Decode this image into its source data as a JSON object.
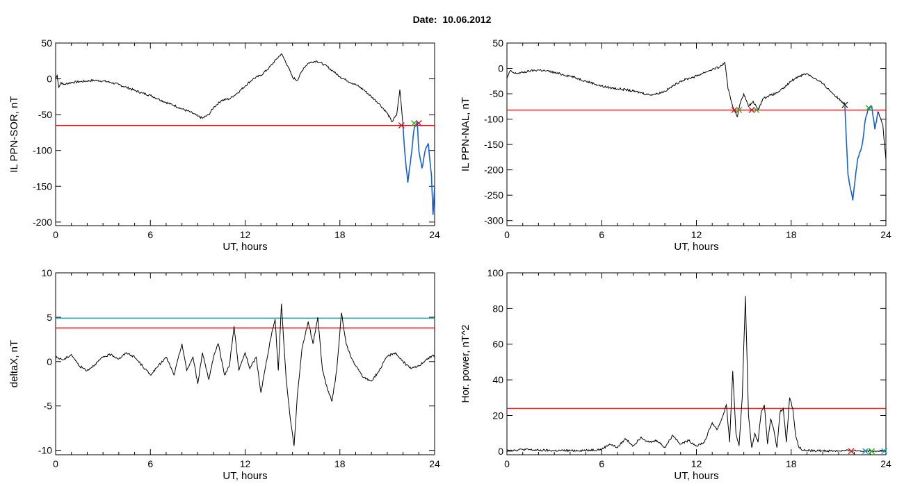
{
  "figure": {
    "title_label": "Date:",
    "title_date": "10.06.2012"
  },
  "colors": {
    "trace": "#000000",
    "threshold_red": "#e00000",
    "threshold_teal": "#008b8b",
    "highlight_blue": "#1560d8",
    "marker_red": "#d01010",
    "marker_green": "#20b020",
    "marker_dark": "#202020",
    "marker_cyan": "#20a0c0"
  },
  "chart_data": [
    {
      "id": "il-sor",
      "type": "line",
      "xlabel": "UT, hours",
      "ylabel": "IL PPN-SOR, nT",
      "xlim": [
        0,
        24
      ],
      "ylim": [
        -205,
        50
      ],
      "xticks": [
        0,
        6,
        12,
        18,
        24
      ],
      "yticks": [
        50,
        0,
        -50,
        -100,
        -150,
        -200
      ],
      "threshold_lines": [
        {
          "value": -65,
          "color": "red"
        }
      ],
      "series": [
        {
          "x": [
            0,
            0.1,
            0.2,
            0.35,
            0.5,
            1,
            1.5,
            2,
            2.5,
            3,
            3.5,
            4,
            4.5,
            5,
            5.5,
            6,
            6.5,
            7,
            7.5,
            8,
            8.5,
            9,
            9.3,
            9.7,
            10,
            10.5,
            11,
            11.5,
            12,
            12.5,
            13,
            13.5,
            14,
            14.3,
            14.7,
            15,
            15.3,
            15.7,
            16,
            16.5,
            17,
            17.5,
            18,
            18.5,
            19,
            19.5,
            20,
            20.5,
            21,
            21.3,
            21.6,
            21.8,
            22
          ],
          "y": [
            0,
            5,
            -12,
            -5,
            -8,
            -5,
            -4,
            -3,
            -2,
            -3,
            -5,
            -8,
            -12,
            -16,
            -20,
            -23,
            -28,
            -33,
            -37,
            -42,
            -46,
            -52,
            -55,
            -50,
            -40,
            -30,
            -28,
            -20,
            -10,
            0,
            5,
            15,
            28,
            35,
            18,
            2,
            -2,
            15,
            22,
            25,
            20,
            12,
            3,
            -3,
            -8,
            -15,
            -25,
            -35,
            -48,
            -60,
            -50,
            -15,
            -65
          ]
        },
        {
          "highlight": true,
          "x": [
            22,
            22.1,
            22.3,
            22.5,
            22.7,
            22.9,
            23,
            23.2,
            23.4,
            23.6,
            23.8,
            23.9,
            24
          ],
          "y": [
            -65,
            -100,
            -145,
            -110,
            -70,
            -60,
            -100,
            -125,
            -100,
            -90,
            -135,
            -190,
            -150
          ]
        }
      ],
      "markers": [
        {
          "x": 21.9,
          "y": -65,
          "color": "red"
        },
        {
          "x": 22.7,
          "y": -62,
          "color": "green"
        },
        {
          "x": 23.0,
          "y": -62,
          "color": "red"
        }
      ]
    },
    {
      "id": "il-nal",
      "type": "line",
      "xlabel": "UT, hours",
      "ylabel": "IL PPN-NAL, nT",
      "xlim": [
        0,
        24
      ],
      "ylim": [
        -310,
        50
      ],
      "xticks": [
        0,
        6,
        12,
        18,
        24
      ],
      "yticks": [
        50,
        0,
        -50,
        -100,
        -150,
        -200,
        -250,
        -300
      ],
      "threshold_lines": [
        {
          "value": -82,
          "color": "red"
        }
      ],
      "series": [
        {
          "x": [
            0,
            0.2,
            0.5,
            1,
            1.5,
            2,
            2.5,
            3,
            3.5,
            4,
            4.5,
            5,
            5.5,
            6,
            6.5,
            7,
            7.5,
            8,
            8.5,
            9,
            9.5,
            10,
            10.5,
            11,
            11.5,
            12,
            12.5,
            13,
            13.5,
            13.8,
            14,
            14.3,
            14.6,
            14.8,
            15,
            15.3,
            15.6,
            15.9,
            16.2,
            16.5,
            17,
            17.5,
            18,
            18.5,
            19,
            19.5,
            20,
            20.5,
            21,
            21.4
          ],
          "y": [
            -20,
            -5,
            -10,
            -8,
            -5,
            -3,
            -5,
            -8,
            -12,
            -15,
            -20,
            -25,
            -30,
            -35,
            -38,
            -40,
            -42,
            -45,
            -48,
            -52,
            -50,
            -45,
            -35,
            -25,
            -20,
            -15,
            -8,
            -2,
            3,
            12,
            -40,
            -75,
            -95,
            -65,
            -50,
            -75,
            -65,
            -82,
            -60,
            -55,
            -50,
            -40,
            -25,
            -15,
            -10,
            -20,
            -30,
            -45,
            -60,
            -70
          ]
        },
        {
          "highlight": true,
          "x": [
            21.4,
            21.6,
            21.9,
            22.2,
            22.5,
            22.7,
            22.9,
            23.1,
            23.3,
            23.5
          ],
          "y": [
            -75,
            -210,
            -260,
            -180,
            -150,
            -100,
            -80,
            -75,
            -120,
            -85
          ]
        },
        {
          "x": [
            23.5,
            23.8,
            24
          ],
          "y": [
            -85,
            -110,
            -180
          ]
        }
      ],
      "markers": [
        {
          "x": 14.4,
          "y": -82,
          "color": "red"
        },
        {
          "x": 14.7,
          "y": -82,
          "color": "green"
        },
        {
          "x": 15.5,
          "y": -82,
          "color": "red"
        },
        {
          "x": 15.8,
          "y": -82,
          "color": "green"
        },
        {
          "x": 21.4,
          "y": -72,
          "color": "dark"
        },
        {
          "x": 22.9,
          "y": -78,
          "color": "green"
        }
      ]
    },
    {
      "id": "deltax",
      "type": "line",
      "xlabel": "UT, hours",
      "ylabel": "deltaX, nT",
      "xlim": [
        0,
        24
      ],
      "ylim": [
        -10.5,
        10
      ],
      "xticks": [
        0,
        6,
        12,
        18,
        24
      ],
      "yticks": [
        10,
        5,
        0,
        -5,
        -10
      ],
      "threshold_lines": [
        {
          "value": 4.9,
          "color": "teal"
        },
        {
          "value": 3.8,
          "color": "red"
        }
      ],
      "series": [
        {
          "x": [
            0,
            0.5,
            1,
            1.5,
            2,
            2.5,
            3,
            3.5,
            4,
            4.5,
            5,
            5.5,
            6,
            6.5,
            7,
            7.5,
            8,
            8.3,
            8.7,
            9,
            9.3,
            9.7,
            10,
            10.3,
            10.7,
            11,
            11.3,
            11.6,
            12,
            12.3,
            12.7,
            13,
            13.3,
            13.6,
            13.9,
            14.1,
            14.3,
            14.6,
            14.9,
            15.1,
            15.3,
            15.6,
            16,
            16.3,
            16.6,
            16.9,
            17.2,
            17.5,
            17.8,
            18.1,
            18.4,
            18.7,
            19,
            19.5,
            20,
            20.5,
            21,
            21.5,
            22,
            22.5,
            23,
            23.5,
            24
          ],
          "y": [
            0.5,
            0.2,
            0.8,
            -0.5,
            -1,
            -0.3,
            0.5,
            0.8,
            0.3,
            1,
            0.5,
            -0.5,
            -1.5,
            -0.5,
            0.5,
            -1.5,
            2,
            -1,
            0.5,
            -2.5,
            1,
            -2,
            0.5,
            2,
            -1.5,
            -0.5,
            4,
            -1,
            1,
            -0.8,
            0.5,
            -3.5,
            -0.5,
            2.5,
            4.8,
            -1,
            6.5,
            -2,
            -7,
            -9.5,
            -4,
            1.5,
            4.5,
            2,
            5,
            -1,
            -3,
            -4.5,
            -1,
            5.5,
            2,
            0.5,
            -0.5,
            -1.8,
            -2.2,
            -1,
            0.6,
            1,
            0,
            -0.8,
            -0.5,
            0.3,
            0.7
          ]
        }
      ]
    },
    {
      "id": "hor-power",
      "type": "line",
      "xlabel": "UT, hours",
      "ylabel": "Hor. power, nT^2",
      "xlim": [
        0,
        24
      ],
      "ylim": [
        -2,
        100
      ],
      "xticks": [
        0,
        6,
        12,
        18,
        24
      ],
      "yticks": [
        100,
        80,
        60,
        40,
        20,
        0
      ],
      "threshold_lines": [
        {
          "value": 24,
          "color": "red"
        }
      ],
      "series": [
        {
          "x": [
            0,
            0.5,
            1,
            2,
            3,
            4,
            5,
            6,
            6.5,
            7,
            7.5,
            8,
            8.5,
            9,
            9.5,
            10,
            10.5,
            11,
            11.5,
            12,
            12.5,
            13,
            13.3,
            13.6,
            13.9,
            14.1,
            14.3,
            14.5,
            14.7,
            14.9,
            15.1,
            15.3,
            15.5,
            15.7,
            15.9,
            16.1,
            16.3,
            16.5,
            16.7,
            16.9,
            17.1,
            17.3,
            17.5,
            17.7,
            17.9,
            18.1,
            18.3,
            18.5,
            18.8,
            19.2,
            20,
            21,
            22,
            23,
            24
          ],
          "y": [
            1,
            0.5,
            1,
            0.5,
            0.3,
            0.3,
            0.5,
            1,
            4,
            2,
            7,
            3,
            8,
            5,
            6,
            2,
            9,
            4,
            6,
            3,
            5,
            16,
            12,
            18,
            26,
            5,
            45,
            10,
            3,
            30,
            87,
            20,
            2,
            10,
            5,
            22,
            26,
            4,
            18,
            12,
            2,
            22,
            24,
            5,
            30,
            24,
            8,
            2,
            0.5,
            0.3,
            0.2,
            0.2,
            0.3,
            0.2,
            0.2
          ]
        }
      ],
      "markers": [
        {
          "x": 21.8,
          "y": 0,
          "color": "red"
        },
        {
          "x": 22.7,
          "y": 0,
          "color": "cyan"
        },
        {
          "x": 23.1,
          "y": 0,
          "color": "green"
        },
        {
          "x": 23.9,
          "y": 0,
          "color": "cyan"
        }
      ]
    }
  ]
}
